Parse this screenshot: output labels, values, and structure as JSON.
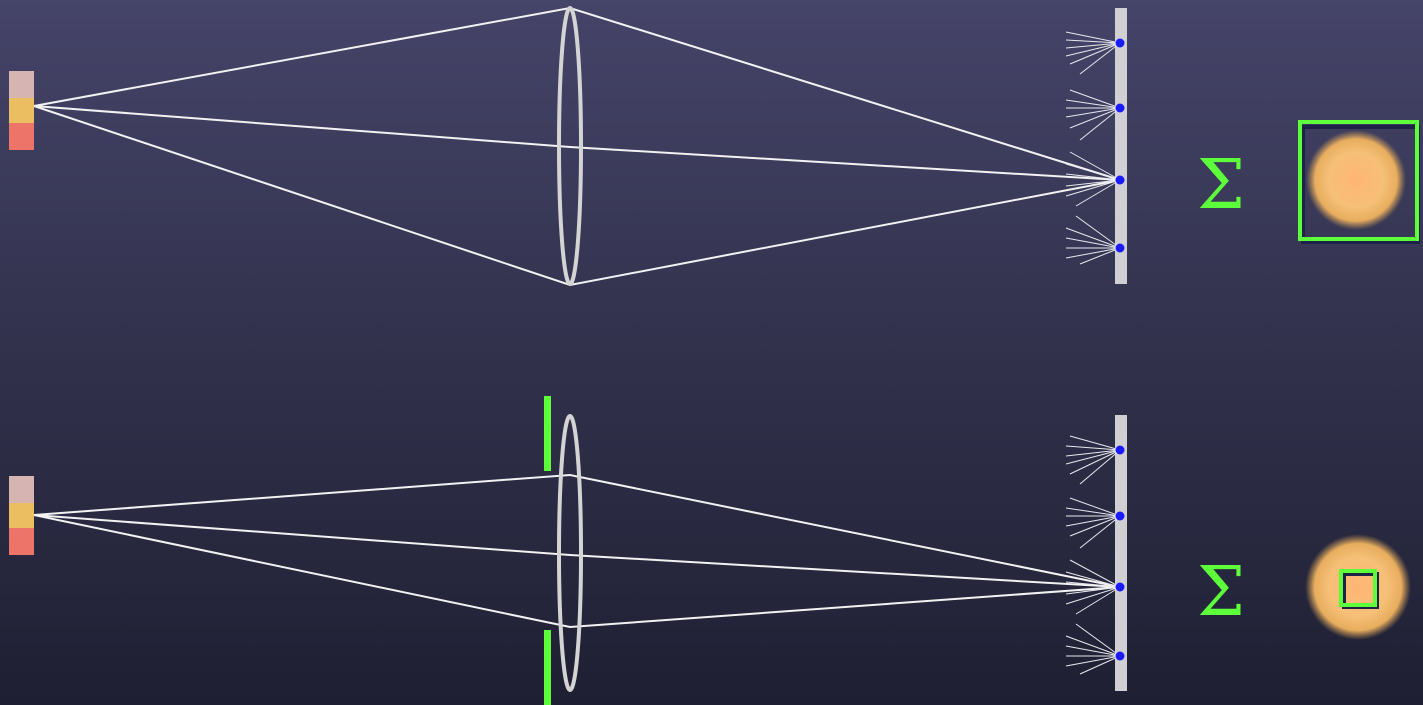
{
  "colors": {
    "background_top": "#454469",
    "background_bottom": "#1f1f33",
    "ray": "#f2f2f2",
    "lens": "#d4d4d4",
    "sensor": "#cfcfd4",
    "sensor_dot": "#1a1aff",
    "aperture": "#5dff3a",
    "sigma": "#5dff3a",
    "box_outline": "#5dff3a",
    "source_stripes": [
      "#d6b4b2",
      "#ebbe62",
      "#ec7468"
    ]
  },
  "panels": [
    {
      "id": "wide-aperture",
      "aperture_stop": false,
      "sum_symbol": "Σ",
      "sample_box": "large"
    },
    {
      "id": "narrow-aperture",
      "aperture_stop": true,
      "sum_symbol": "Σ",
      "sample_box": "small"
    }
  ]
}
